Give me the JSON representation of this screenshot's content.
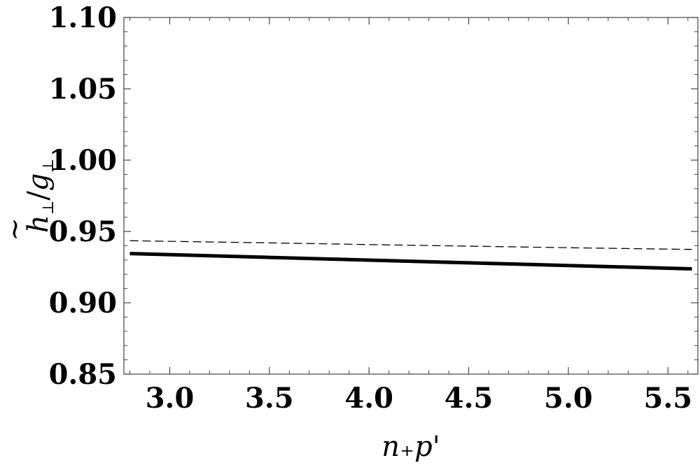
{
  "chart_data": {
    "type": "line",
    "xlabel": "n₊p'",
    "ylabel": {
      "main": "h",
      "main_sub": "⊥",
      "sep": "/",
      "denom": "g",
      "denom_sub": "⊥",
      "accent": "~"
    },
    "xlim": [
      2.77,
      5.65
    ],
    "ylim": [
      0.85,
      1.1
    ],
    "xticks": [
      {
        "value": 3.0,
        "label": "3.0"
      },
      {
        "value": 3.5,
        "label": "3.5"
      },
      {
        "value": 4.0,
        "label": "4.0"
      },
      {
        "value": 4.5,
        "label": "4.5"
      },
      {
        "value": 5.0,
        "label": "5.0"
      },
      {
        "value": 5.5,
        "label": "5.5"
      }
    ],
    "yticks": [
      {
        "value": 0.85,
        "label": "0.85"
      },
      {
        "value": 0.9,
        "label": "0.90"
      },
      {
        "value": 0.95,
        "label": "0.95"
      },
      {
        "value": 1.0,
        "label": "1.00"
      },
      {
        "value": 1.05,
        "label": "1.05"
      },
      {
        "value": 1.1,
        "label": "1.10"
      }
    ],
    "grid": false,
    "series": [
      {
        "style": "solid",
        "color": "#000000",
        "x": [
          2.8,
          3.5,
          4.0,
          4.5,
          5.0,
          5.62
        ],
        "y": [
          0.9345,
          0.9318,
          0.9299,
          0.928,
          0.9261,
          0.9238
        ]
      },
      {
        "style": "dashed",
        "color": "#000000",
        "x": [
          2.8,
          3.5,
          4.0,
          4.5,
          5.0,
          5.62
        ],
        "y": [
          0.9435,
          0.942,
          0.9408,
          0.9397,
          0.9386,
          0.9374
        ]
      }
    ]
  }
}
